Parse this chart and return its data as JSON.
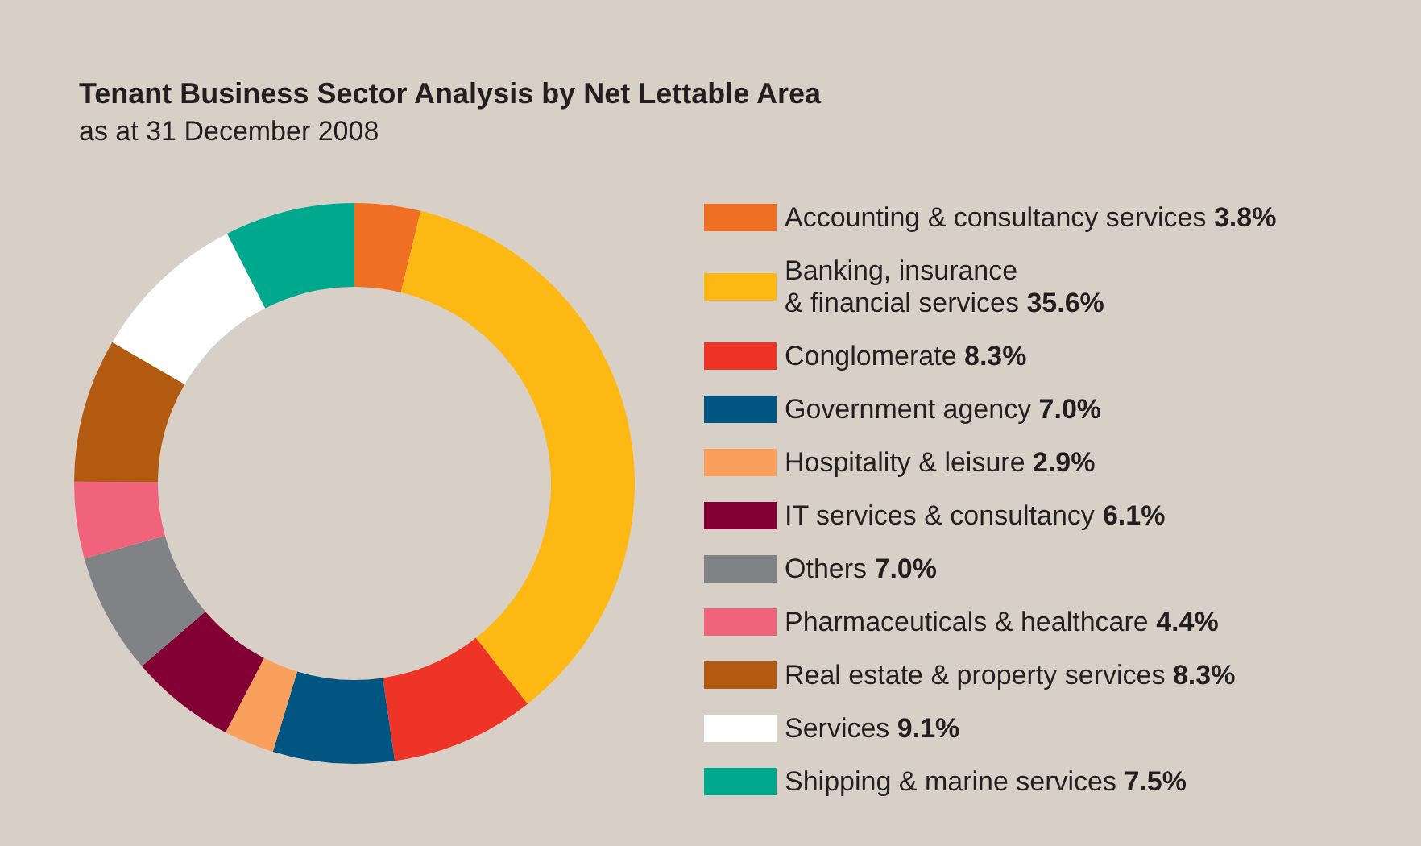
{
  "chart_data": {
    "type": "donut",
    "title": "Tenant Business Sector Analysis by Net Lettable Area",
    "subtitle": "as at 31 December 2008",
    "categories": [
      "Accounting & consultancy services",
      "Banking, insurance\n& financial services",
      "Conglomerate",
      "Government agency",
      "Hospitality & leisure",
      "IT services & consultancy",
      "Others",
      "Pharmaceuticals & healthcare",
      "Real estate & property services",
      "Services",
      "Shipping & marine services"
    ],
    "values": [
      3.8,
      35.6,
      8.3,
      7.0,
      2.9,
      6.1,
      7.0,
      4.4,
      8.3,
      9.1,
      7.5
    ],
    "value_labels": [
      "3.8%",
      "35.6%",
      "8.3%",
      "7.0%",
      "2.9%",
      "6.1%",
      "7.0%",
      "4.4%",
      "8.3%",
      "9.1%",
      "7.5%"
    ],
    "colors": [
      "#f07023",
      "#fdb813",
      "#ee3427",
      "#005581",
      "#f9a05c",
      "#820034",
      "#808285",
      "#f0637a",
      "#b15a10",
      "#ffffff",
      "#00a88e"
    ],
    "legend": "right"
  }
}
